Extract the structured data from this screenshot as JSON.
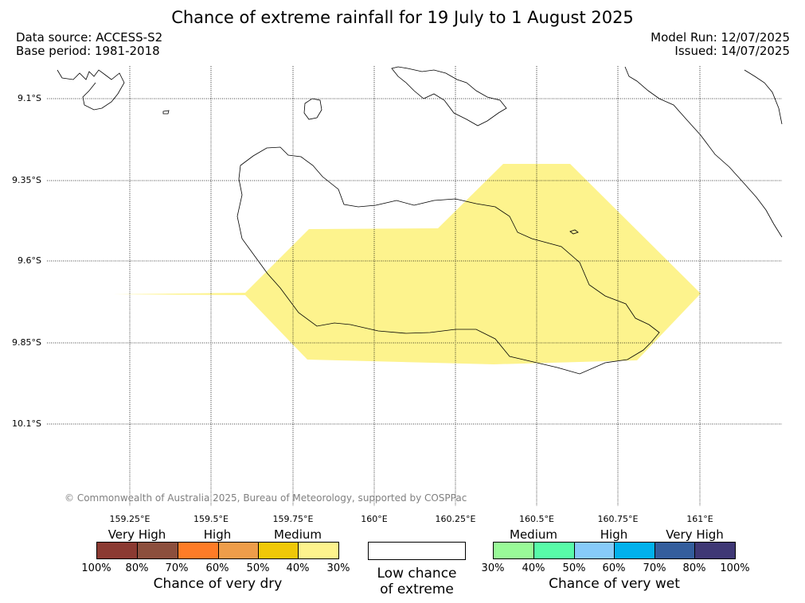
{
  "title": "Chance of extreme rainfall for 19 July to 1 August 2025",
  "meta": {
    "data_source": "Data source: ACCESS-S2",
    "base_period": "Base period: 1981-2018",
    "model_run": "Model Run: 12/07/2025",
    "issued": "Issued: 14/07/2025"
  },
  "map": {
    "lat_labels": [
      "9.1°S",
      "9.35°S",
      "9.6°S",
      "9.85°S",
      "10.1°S"
    ],
    "lon_labels": [
      "159.25°E",
      "159.5°E",
      "159.75°E",
      "160°E",
      "160.25°E",
      "160.5°E",
      "160.75°E",
      "161°E"
    ],
    "copyright": "© Commonwealth of Australia 2025, Bureau of Meteorology, supported by COSPPac",
    "highlight_category": "30-40% chance of very dry",
    "highlight_color": "#fdf38d"
  },
  "legend": {
    "dry": {
      "categories": [
        "Very High",
        "High",
        "Medium"
      ],
      "colors": [
        "#8b3a32",
        "#8c4f3d",
        "#fe7c27",
        "#ee9d4a",
        "#f0c808",
        "#fdf38d"
      ],
      "ticks": [
        "100%",
        "80%",
        "70%",
        "60%",
        "50%",
        "40%",
        "30%"
      ],
      "title": "Chance of very dry"
    },
    "low": {
      "label_line1": "Low chance",
      "label_line2": "of extreme"
    },
    "wet": {
      "categories": [
        "Medium",
        "High",
        "Very High"
      ],
      "colors": [
        "#99fa98",
        "#58fba8",
        "#87cbf9",
        "#01b1ed",
        "#345e9d",
        "#3f3875"
      ],
      "ticks": [
        "30%",
        "40%",
        "50%",
        "60%",
        "70%",
        "80%",
        "100%"
      ],
      "title": "Chance of very wet"
    }
  }
}
